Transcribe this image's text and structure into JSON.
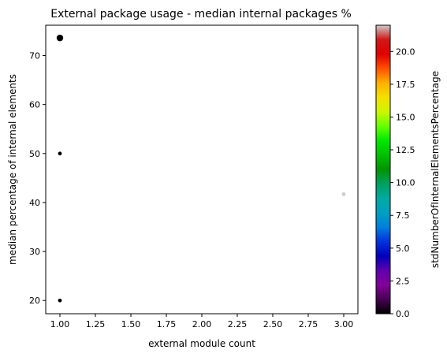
{
  "chart_data": {
    "type": "scatter",
    "title": "External package usage - median internal packages %",
    "xlabel": "external module count",
    "ylabel": "median percentage of internal elements",
    "xlim": [
      0.9,
      3.1
    ],
    "ylim": [
      17.3,
      76.2
    ],
    "xticks": [
      "1.00",
      "1.25",
      "1.50",
      "1.75",
      "2.00",
      "2.25",
      "2.50",
      "2.75",
      "3.00"
    ],
    "yticks": [
      "20",
      "30",
      "40",
      "50",
      "60",
      "70"
    ],
    "grid": false,
    "points": [
      {
        "x": 1.0,
        "y": 73.6,
        "color": "#000000",
        "size": "large"
      },
      {
        "x": 1.0,
        "y": 50.0,
        "color": "#000000",
        "size": "small"
      },
      {
        "x": 1.0,
        "y": 20.0,
        "color": "#000000",
        "size": "small"
      },
      {
        "x": 3.0,
        "y": 41.7,
        "color": "#cccccc",
        "size": "small"
      }
    ],
    "colorbar": {
      "label": "stdNumberOfInternalElementsPercentage",
      "colormap": "nipy_spectral",
      "range": [
        0,
        22
      ],
      "ticks": [
        "0.0",
        "2.5",
        "5.0",
        "7.5",
        "10.0",
        "12.5",
        "15.0",
        "17.5",
        "20.0"
      ]
    }
  }
}
